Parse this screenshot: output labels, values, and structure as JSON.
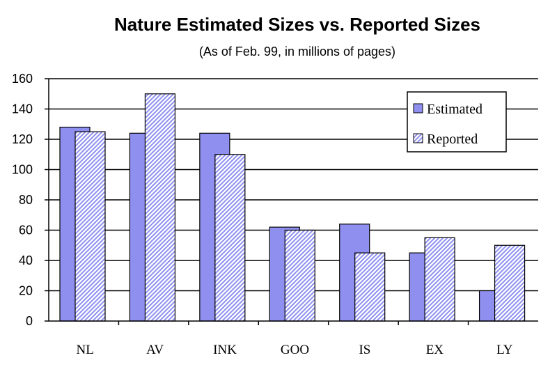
{
  "chart_data": {
    "type": "bar",
    "title": "Nature Estimated Sizes vs. Reported Sizes",
    "subtitle": "(As of Feb. 99, in millions of pages)",
    "xlabel": "",
    "ylabel": "",
    "categories": [
      "NL",
      "AV",
      "INK",
      "GOO",
      "IS",
      "EX",
      "LY"
    ],
    "series": [
      {
        "name": "Estimated",
        "values": [
          128,
          124,
          124,
          62,
          64,
          45,
          20
        ],
        "color": "#8F8FEF",
        "pattern": "solid"
      },
      {
        "name": "Reported",
        "values": [
          125,
          150,
          110,
          60,
          45,
          55,
          50
        ],
        "color": "#8F8FEF",
        "pattern": "diagonal-hatch"
      }
    ],
    "ylim": [
      0,
      160
    ],
    "yticks": [
      0,
      20,
      40,
      60,
      80,
      100,
      120,
      140,
      160
    ],
    "grid": true,
    "legend_position": "top-right"
  }
}
